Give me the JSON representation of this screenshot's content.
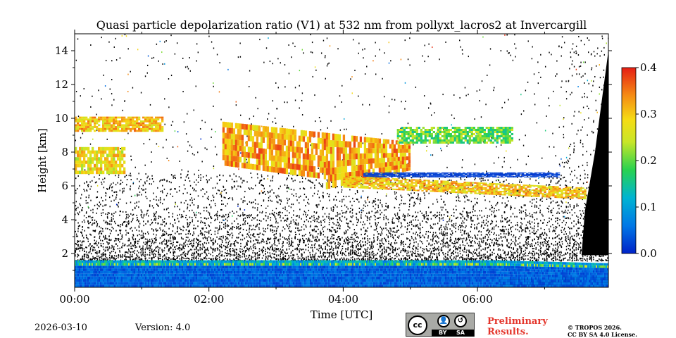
{
  "chart_data": {
    "type": "heatmap",
    "title": "Quasi particle depolarization ratio (V1) at 532 nm from pollyxt_lacros2 at Invercargill",
    "xlabel": "Time [UTC]",
    "ylabel": "Height [km]",
    "x_unit": "hours UTC",
    "xlim": [
      0,
      7.95
    ],
    "ylim": [
      0,
      15
    ],
    "xticks": [
      0,
      2,
      4,
      6
    ],
    "xtick_labels": [
      "00:00",
      "02:00",
      "04:00",
      "06:00"
    ],
    "yticks": [
      2,
      4,
      6,
      8,
      10,
      12,
      14
    ],
    "ytick_labels": [
      "2",
      "4",
      "6",
      "8",
      "10",
      "12",
      "14"
    ],
    "colorbar": {
      "range": [
        0.0,
        0.4
      ],
      "ticks": [
        0.0,
        0.1,
        0.2,
        0.3,
        0.4
      ],
      "tick_labels": [
        "0.0",
        "0.1",
        "0.2",
        "0.3",
        "0.4"
      ],
      "colormap": "jet"
    },
    "features": [
      {
        "name": "boundary-layer",
        "t_start": 0.0,
        "t_end": 7.95,
        "base_km": 0.0,
        "top_km": 1.6,
        "depol": 0.05
      },
      {
        "name": "lower-cirrus-west",
        "t_start": 0.0,
        "t_end": 0.75,
        "base_km": 6.7,
        "top_km": 8.3,
        "depol": 0.28
      },
      {
        "name": "upper-cirrus-west",
        "t_start": 0.0,
        "t_end": 1.3,
        "base_km": 9.2,
        "top_km": 10.1,
        "depol": 0.3
      },
      {
        "name": "main-cirrus",
        "t_start": 2.2,
        "t_end": 5.0,
        "base_km": 5.8,
        "top_km": 9.8,
        "depol": 0.32
      },
      {
        "name": "east-cirrus",
        "t_start": 4.8,
        "t_end": 6.5,
        "base_km": 8.5,
        "top_km": 9.5,
        "depol": 0.2
      },
      {
        "name": "low-depol-layer",
        "t_start": 4.3,
        "t_end": 7.2,
        "base_km": 6.5,
        "top_km": 6.8,
        "depol": 0.02
      },
      {
        "name": "lower-cloud-tail",
        "t_start": 4.0,
        "t_end": 7.6,
        "base_km": 5.3,
        "top_km": 6.5,
        "depol": 0.3
      }
    ]
  },
  "footer": {
    "date": "2026-03-10",
    "version": "Version: 4.0",
    "preliminary": [
      "Preliminary",
      "Results."
    ],
    "license": [
      "© TROPOS 2026.",
      "CC BY SA 4.0 License."
    ],
    "cc_badge": {
      "cc": "cc",
      "by": "BY",
      "sa": "SA"
    }
  },
  "colors": {
    "noise": "#000000",
    "low": "#0050e0",
    "high": "#e4362c",
    "preliminary_text": "#e4362c"
  }
}
